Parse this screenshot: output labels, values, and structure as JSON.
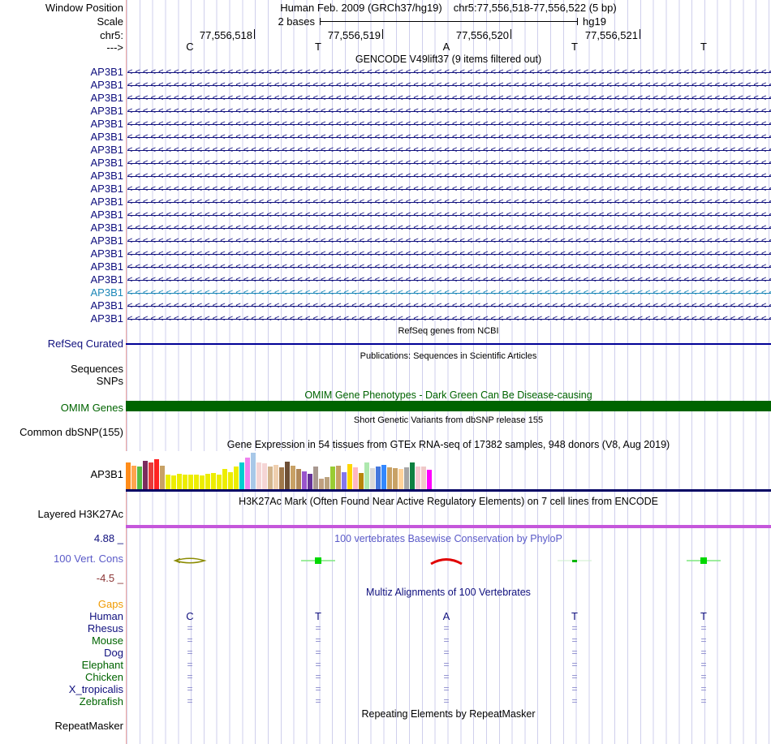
{
  "header": {
    "window_position_label": "Window Position",
    "assembly_text": "Human Feb. 2009 (GRCh37/hg19)",
    "position_text": "chr5:77,556,518-77,556,522 (5 bp)",
    "scale_label": "Scale",
    "scale_value": "2 bases",
    "genome": "hg19",
    "chrom_label": "chr5:",
    "coordinates": [
      "77,556,518",
      "77,556,519",
      "77,556,520",
      "77,556,521"
    ],
    "strand_label": "--->",
    "bases": [
      "C",
      "T",
      "A",
      "T",
      "T"
    ]
  },
  "gencode": {
    "title": "GENCODE V49lift37 (9 items filtered out)",
    "gene_name": "AP3B1",
    "transcripts": [
      {
        "label": "AP3B1",
        "color": "#10107E"
      },
      {
        "label": "AP3B1",
        "color": "#10107E"
      },
      {
        "label": "AP3B1",
        "color": "#10107E"
      },
      {
        "label": "AP3B1",
        "color": "#10107E"
      },
      {
        "label": "AP3B1",
        "color": "#10107E"
      },
      {
        "label": "AP3B1",
        "color": "#10107E"
      },
      {
        "label": "AP3B1",
        "color": "#10107E"
      },
      {
        "label": "AP3B1",
        "color": "#10107E"
      },
      {
        "label": "AP3B1",
        "color": "#10107E"
      },
      {
        "label": "AP3B1",
        "color": "#10107E"
      },
      {
        "label": "AP3B1",
        "color": "#10107E"
      },
      {
        "label": "AP3B1",
        "color": "#10107E"
      },
      {
        "label": "AP3B1",
        "color": "#10107E"
      },
      {
        "label": "AP3B1",
        "color": "#10107E"
      },
      {
        "label": "AP3B1",
        "color": "#10107E"
      },
      {
        "label": "AP3B1",
        "color": "#10107E"
      },
      {
        "label": "AP3B1",
        "color": "#10107E"
      },
      {
        "label": "AP3B1",
        "color": "#1C87B8"
      },
      {
        "label": "AP3B1",
        "color": "#10107E"
      },
      {
        "label": "AP3B1",
        "color": "#10107E"
      }
    ]
  },
  "refseq": {
    "title": "RefSeq genes from NCBI",
    "label": "RefSeq Curated",
    "line_color": "#000096"
  },
  "publications": {
    "title": "Publications: Sequences in Scientific Articles",
    "labels": [
      "Sequences",
      "SNPs"
    ]
  },
  "omim": {
    "title": "OMIM Gene Phenotypes - Dark Green Can Be Disease-causing",
    "label": "OMIM Genes",
    "bar_color": "#006400"
  },
  "dbsnp": {
    "title": "Short Genetic Variants from dbSNP release 155",
    "label": "Common dbSNP(155)"
  },
  "gtex": {
    "title": "Gene Expression in 54 tissues from GTEx RNA-seq of 17382 samples, 948 donors (V8, Aug 2019)",
    "label": "AP3B1",
    "baseline_color": "#000064"
  },
  "chart_data": {
    "type": "bar",
    "title": "Gene Expression in 54 tissues from GTEx RNA-seq of 17382 samples, 948 donors (V8, Aug 2019)",
    "gene": "AP3B1",
    "note": "54 tissue bars, relative expression heights in px (max 46), tissue names not shown in image",
    "bars": [
      {
        "v": 34,
        "c": "#FF8C1A"
      },
      {
        "v": 30,
        "c": "#FFA54F"
      },
      {
        "v": 29,
        "c": "#55BB44"
      },
      {
        "v": 36,
        "c": "#7B2D5E"
      },
      {
        "v": 34,
        "c": "#E83A3A"
      },
      {
        "v": 38,
        "c": "#FF2222"
      },
      {
        "v": 30,
        "c": "#C8A165"
      },
      {
        "v": 19,
        "c": "#EDED00"
      },
      {
        "v": 18,
        "c": "#EDED00"
      },
      {
        "v": 20,
        "c": "#EDED00"
      },
      {
        "v": 19,
        "c": "#EDED00"
      },
      {
        "v": 19,
        "c": "#EDED00"
      },
      {
        "v": 19,
        "c": "#EDED00"
      },
      {
        "v": 18,
        "c": "#EDED00"
      },
      {
        "v": 20,
        "c": "#EDED00"
      },
      {
        "v": 21,
        "c": "#EDED00"
      },
      {
        "v": 19,
        "c": "#EDED00"
      },
      {
        "v": 26,
        "c": "#EDED00"
      },
      {
        "v": 22,
        "c": "#EDED00"
      },
      {
        "v": 29,
        "c": "#EDED00"
      },
      {
        "v": 34,
        "c": "#00CED1"
      },
      {
        "v": 40,
        "c": "#EE82EE"
      },
      {
        "v": 46,
        "c": "#A8C8E8"
      },
      {
        "v": 34,
        "c": "#F5D5D5"
      },
      {
        "v": 33,
        "c": "#F5D5D5"
      },
      {
        "v": 29,
        "c": "#D2B48C"
      },
      {
        "v": 31,
        "c": "#EFCFAF"
      },
      {
        "v": 28,
        "c": "#A0784B"
      },
      {
        "v": 35,
        "c": "#6E4F35"
      },
      {
        "v": 30,
        "c": "#C8A165"
      },
      {
        "v": 26,
        "c": "#B08858"
      },
      {
        "v": 23,
        "c": "#9955CC"
      },
      {
        "v": 20,
        "c": "#663399"
      },
      {
        "v": 29,
        "c": "#A89890"
      },
      {
        "v": 14,
        "c": "#C0A080"
      },
      {
        "v": 16,
        "c": "#BBA27E"
      },
      {
        "v": 29,
        "c": "#99CC33"
      },
      {
        "v": 30,
        "c": "#C8A165"
      },
      {
        "v": 22,
        "c": "#8576EE"
      },
      {
        "v": 32,
        "c": "#FFD700"
      },
      {
        "v": 28,
        "c": "#FFB6C1"
      },
      {
        "v": 21,
        "c": "#B8860B"
      },
      {
        "v": 34,
        "c": "#AEE8AE"
      },
      {
        "v": 27,
        "c": "#D9D9D9"
      },
      {
        "v": 29,
        "c": "#4477DD"
      },
      {
        "v": 31,
        "c": "#3388FF"
      },
      {
        "v": 28,
        "c": "#C8A165"
      },
      {
        "v": 27,
        "c": "#C8A165"
      },
      {
        "v": 26,
        "c": "#FFD39B"
      },
      {
        "v": 28,
        "c": "#A6A6A6"
      },
      {
        "v": 34,
        "c": "#0E8040"
      },
      {
        "v": 29,
        "c": "#F5C8D0"
      },
      {
        "v": 29,
        "c": "#F0C8C8"
      },
      {
        "v": 25,
        "c": "#FF00FF"
      }
    ]
  },
  "h3k27ac": {
    "title": "H3K27Ac Mark (Often Found Near Active Regulatory Elements) on 7 cell lines from ENCODE",
    "label": "Layered H3K27Ac",
    "bar_color": "#C557DB"
  },
  "phylop": {
    "title": "100 vertebrates Basewise Conservation by PhyloP",
    "label": "100 Vert. Cons",
    "max_label": "4.88 _",
    "min_label": "-4.5 _"
  },
  "multiz": {
    "title": "Multiz Alignments of 100 Vertebrates",
    "gaps_label": "Gaps",
    "human_label": "Human",
    "align_mark": "=",
    "species": [
      {
        "name": "Rhesus",
        "color": "#10107E"
      },
      {
        "name": "Mouse",
        "color": "#006400"
      },
      {
        "name": "Dog",
        "color": "#10107E"
      },
      {
        "name": "Elephant",
        "color": "#006400"
      },
      {
        "name": "Chicken",
        "color": "#006400"
      },
      {
        "name": "X_tropicalis",
        "color": "#10107E"
      },
      {
        "name": "Zebrafish",
        "color": "#006400"
      }
    ]
  },
  "repeatmasker": {
    "title": "Repeating Elements by RepeatMasker",
    "label": "RepeatMasker"
  },
  "colors": {
    "grid": "#CFCFEC",
    "guide": "#F4ABA1",
    "gene_navy": "#10107E",
    "gene_teal": "#1C87B8",
    "omim_green": "#006400",
    "h3k27ac_orchid": "#C557DB",
    "gtex_baseline": "#000064",
    "refseq_line": "#000096"
  }
}
